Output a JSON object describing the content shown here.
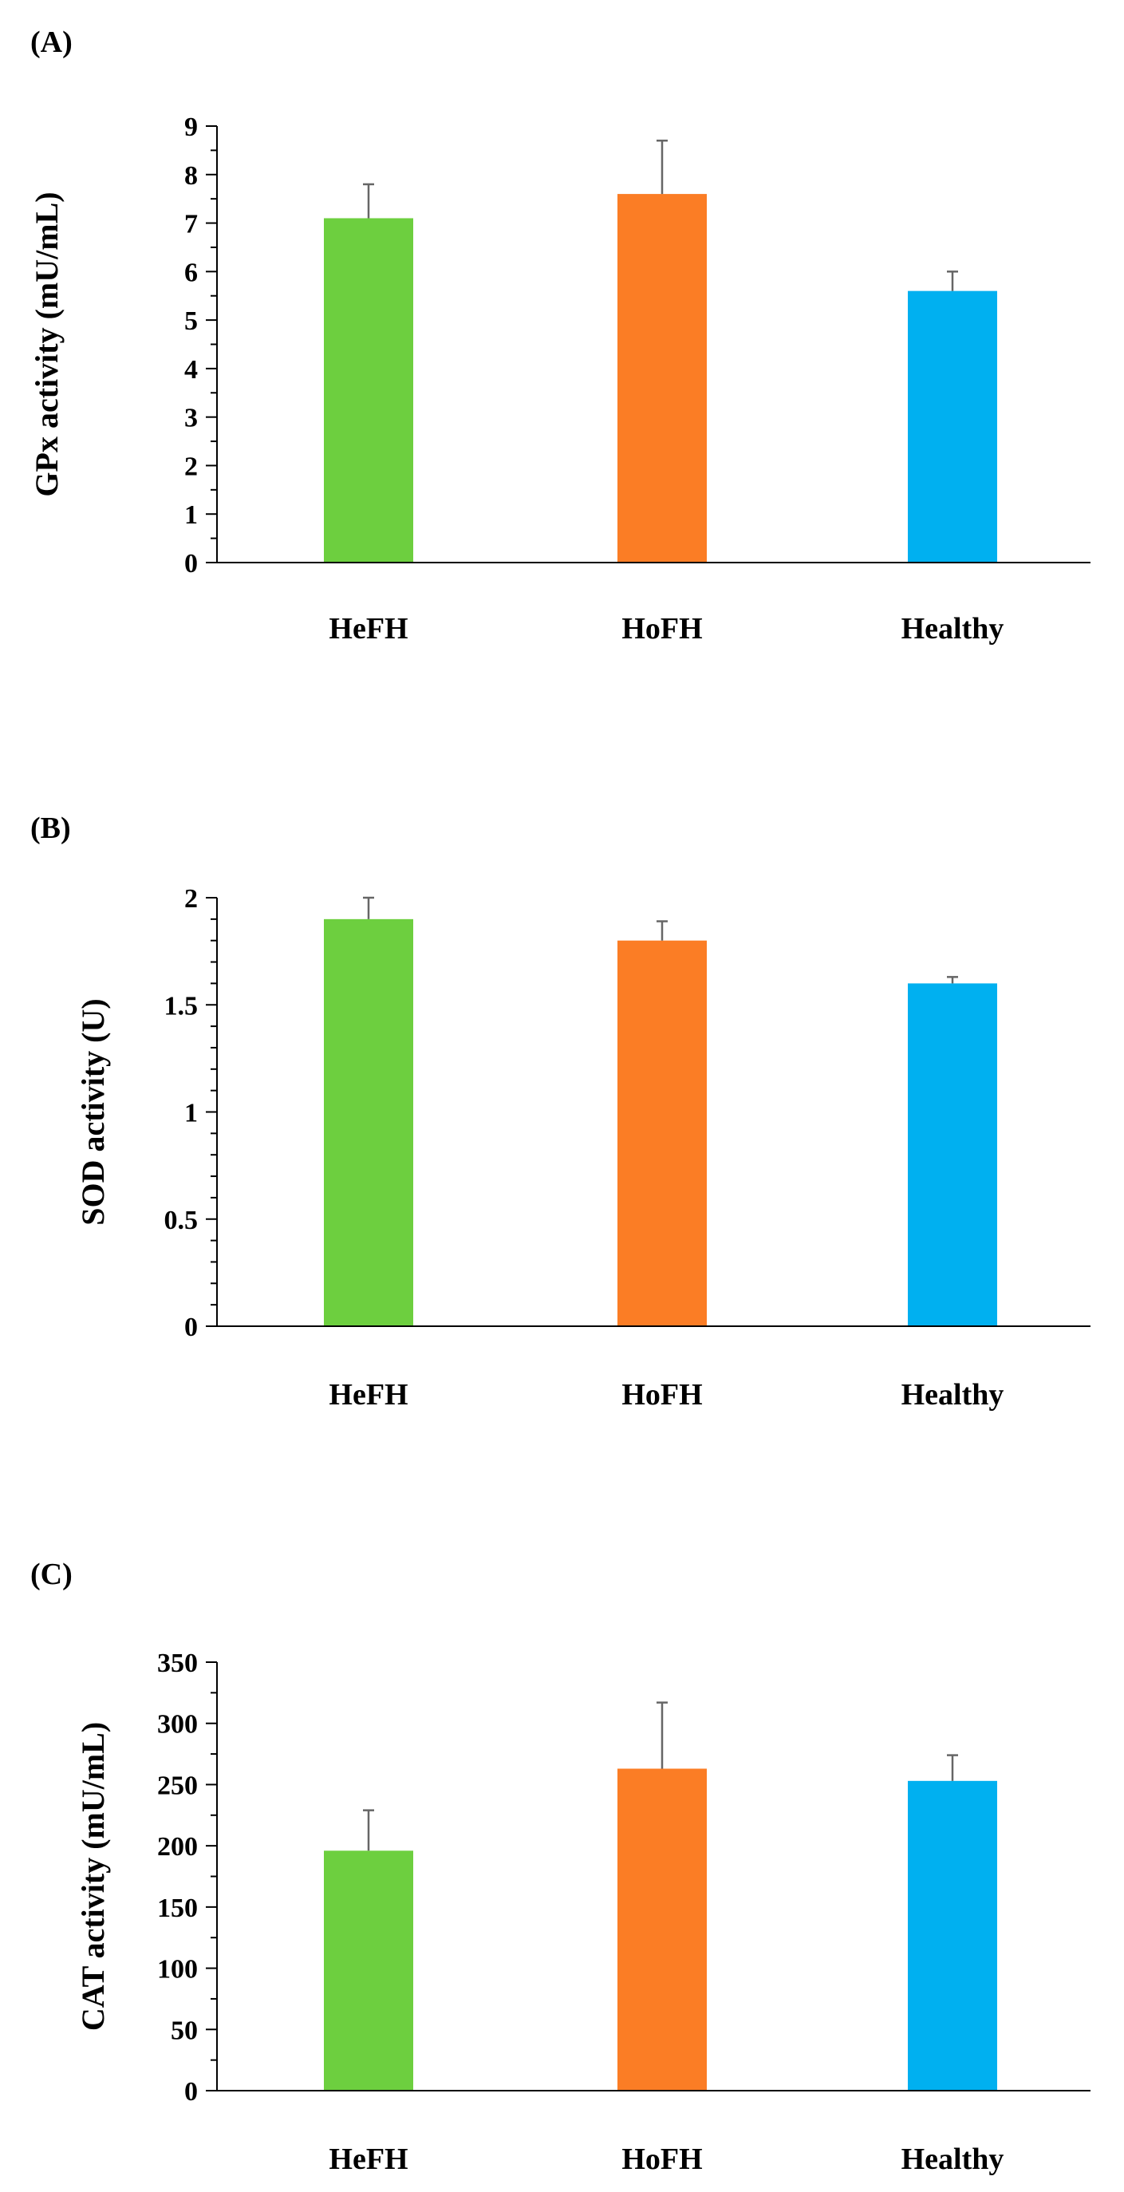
{
  "colors": {
    "hefh": "#6dcf3f",
    "hofh": "#fb7d25",
    "healthy": "#00b0f0",
    "axis": "#000000"
  },
  "chart_data": [
    {
      "type": "bar",
      "panel_label": "(A)",
      "categories": [
        "HeFH",
        "HoFH",
        "Healthy"
      ],
      "values": [
        7.1,
        7.6,
        5.6
      ],
      "errors": [
        0.7,
        1.1,
        0.4
      ],
      "ylabel": "GPx activity (mU/mL)",
      "xlabel": "",
      "ylim": [
        0,
        9
      ],
      "yticks": [
        0,
        1,
        2,
        3,
        4,
        5,
        6,
        7,
        8,
        9
      ],
      "ytick_labels": [
        "0",
        "1",
        "2",
        "3",
        "4",
        "5",
        "6",
        "7",
        "8",
        "9"
      ],
      "minor_per_major": 2,
      "grid": false
    },
    {
      "type": "bar",
      "panel_label": "(B)",
      "categories": [
        "HeFH",
        "HoFH",
        "Healthy"
      ],
      "values": [
        1.9,
        1.8,
        1.6
      ],
      "errors": [
        0.1,
        0.09,
        0.03
      ],
      "ylabel": "SOD activity (U)",
      "xlabel": "",
      "ylim": [
        0,
        2
      ],
      "yticks": [
        0,
        0.5,
        1,
        1.5,
        2
      ],
      "ytick_labels": [
        "0",
        "0.5",
        "1",
        "1.5",
        "2"
      ],
      "minor_per_major": 5,
      "grid": false
    },
    {
      "type": "bar",
      "panel_label": "(C)",
      "categories": [
        "HeFH",
        "HoFH",
        "Healthy"
      ],
      "values": [
        196,
        263,
        253
      ],
      "errors": [
        33,
        54,
        21
      ],
      "ylabel": "CAT activity (mU/mL)",
      "xlabel": "",
      "ylim": [
        0,
        350
      ],
      "yticks": [
        0,
        50,
        100,
        150,
        200,
        250,
        300,
        350
      ],
      "ytick_labels": [
        "0",
        "50",
        "100",
        "150",
        "200",
        "250",
        "300",
        "350"
      ],
      "minor_per_major": 2,
      "grid": false
    }
  ]
}
